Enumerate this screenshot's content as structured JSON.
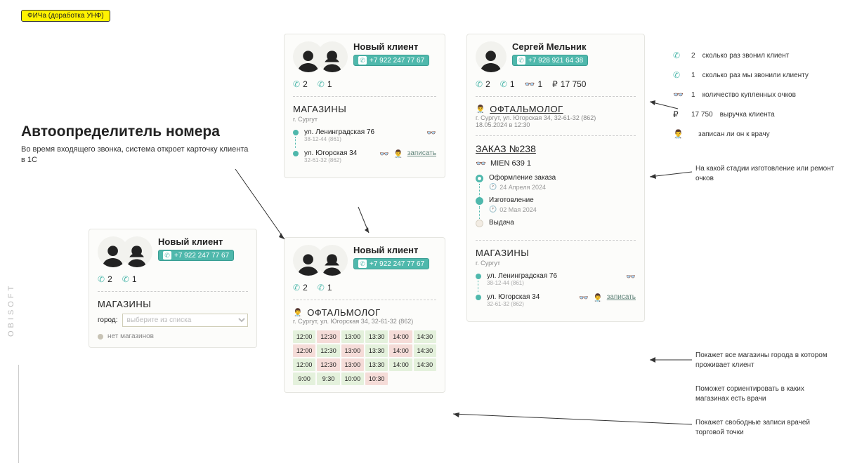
{
  "tag": "ФИЧа (доработка УНФ)",
  "title": "Автоопределитель номера",
  "subtitle": "Во время входящего звонка, система откроет карточку клиента в 1С",
  "brand": "OBISOFT",
  "card1": {
    "name": "Новый клиент",
    "phone": "+7 922 247 77 67",
    "calls_in": "2",
    "calls_out": "1",
    "shops_h": "МАГАЗИНЫ",
    "city_label": "город:",
    "city_placeholder": "выберите из списка",
    "no_shops": "нет магазинов"
  },
  "card2": {
    "name": "Новый клиент",
    "phone": "+7 922 247 77 67",
    "calls_in": "2",
    "calls_out": "1",
    "shops_h": "МАГАЗИНЫ",
    "city": "г. Сургут",
    "shops": [
      {
        "addr": "ул. Ленинградская 76",
        "meta": "38-12-44 (861)",
        "glasses": true,
        "doctor": false,
        "link": ""
      },
      {
        "addr": "ул. Югорская 34",
        "meta": "32-61-32 (862)",
        "glasses": true,
        "doctor": true,
        "link": "записать"
      }
    ]
  },
  "card3": {
    "name": "Новый клиент",
    "phone": "+7 922 247 77 67",
    "calls_in": "2",
    "calls_out": "1",
    "doctor_h": "ОФТАЛЬМОЛОГ",
    "doctor_sub": "г. Сургут, ул. Югорская 34, 32-61-32 (862)",
    "slots": [
      {
        "t": "12:00",
        "c": "g"
      },
      {
        "t": "12:30",
        "c": "r"
      },
      {
        "t": "13:00",
        "c": "g"
      },
      {
        "t": "13:30",
        "c": "g"
      },
      {
        "t": "14:00",
        "c": "r"
      },
      {
        "t": "14:30",
        "c": "g"
      },
      {
        "t": "12:00",
        "c": "r"
      },
      {
        "t": "12:30",
        "c": "g"
      },
      {
        "t": "13:00",
        "c": "r"
      },
      {
        "t": "13:30",
        "c": "g"
      },
      {
        "t": "14:00",
        "c": "r"
      },
      {
        "t": "14:30",
        "c": "g"
      },
      {
        "t": "12:00",
        "c": "g"
      },
      {
        "t": "12:30",
        "c": "r"
      },
      {
        "t": "13:00",
        "c": "r"
      },
      {
        "t": "13:30",
        "c": "g"
      },
      {
        "t": "14:00",
        "c": "g"
      },
      {
        "t": "14:30",
        "c": "g"
      },
      {
        "t": "9:00",
        "c": "g"
      },
      {
        "t": "9:30",
        "c": "g"
      },
      {
        "t": "10:00",
        "c": "g"
      },
      {
        "t": "10:30",
        "c": "r"
      },
      {
        "t": "",
        "c": ""
      },
      {
        "t": "",
        "c": ""
      }
    ]
  },
  "card4": {
    "name": "Сергей Мельник",
    "phone": "+7 928 921 64 38",
    "calls_in": "2",
    "calls_out": "1",
    "glasses": "1",
    "revenue": "17 750",
    "doctor_h": "ОФТАЛЬМОЛОГ",
    "doctor_sub": "г. Сургут, ул. Югорская 34, 32-61-32 (862)",
    "doctor_date": "18.05.2024 в 12:30",
    "order_h": "ЗАКАЗ №238",
    "order_item": "MIEN 639 1",
    "timeline": [
      {
        "label": "Оформление заказа",
        "date": "24 Апреля 2024",
        "state": "done"
      },
      {
        "label": "Изготовление",
        "date": "02 Мая 2024",
        "state": "active"
      },
      {
        "label": "Выдача",
        "date": "",
        "state": "pending"
      }
    ],
    "shops_h": "МАГАЗИНЫ",
    "city": "г. Сургут",
    "shops": [
      {
        "addr": "ул. Ленинградская 76",
        "meta": "38-12-44 (861)",
        "glasses": true,
        "doctor": false,
        "link": ""
      },
      {
        "addr": "ул. Югорская 34",
        "meta": "32-61-32 (862)",
        "glasses": true,
        "doctor": true,
        "link": "записать"
      }
    ]
  },
  "legend": {
    "l1": "сколько раз звонил клиент",
    "v1": "2",
    "l2": "сколько раз мы звонили клиенту",
    "v2": "1",
    "l3": "количество купленных очков",
    "v3": "1",
    "l4": "выручка клиента",
    "v4": "17 750",
    "l5": "записан ли он к врачу"
  },
  "notes": {
    "n1": "На какой стадии изготовление или ремонт очков",
    "n2": "Покажет все магазины города в котором проживает клиент",
    "n3": "Поможет сориентировать в каких магазинах есть врачи",
    "n4": "Покажет свободные записи врачей торговой точки"
  },
  "colors": {
    "accent": "#4fb8ac",
    "yellow": "#fff200",
    "slot_green": "#e4f1dc",
    "slot_red": "#f5dcd8"
  }
}
